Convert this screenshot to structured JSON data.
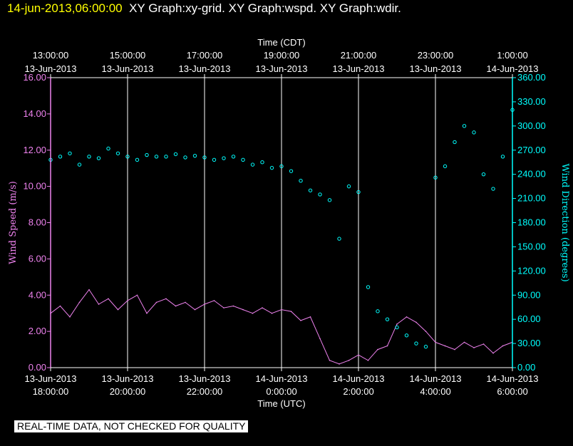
{
  "header": {
    "timestamp": "14-jun-2013,06:00:00",
    "graph_titles": "XY Graph:xy-grid.  XY Graph:wspd.  XY Graph:wdir."
  },
  "notice": "REAL-TIME DATA, NOT CHECKED FOR QUALITY",
  "colors": {
    "background": "#000000",
    "wspd": "#ee82ee",
    "wdir": "#00ffff",
    "grid": "#ffffff",
    "axis_wspd": "#ee82ee",
    "axis_wdir": "#00ffff"
  },
  "chart_data": {
    "type": "line",
    "title": "XY Graph:xy-grid.  XY Graph:wspd.  XY Graph:wdir.",
    "top_axis": {
      "label": "Time (CDT)",
      "ticks": [
        {
          "time": "13:00:00",
          "date": "13-Jun-2013"
        },
        {
          "time": "15:00:00",
          "date": "13-Jun-2013"
        },
        {
          "time": "17:00:00",
          "date": "13-Jun-2013"
        },
        {
          "time": "19:00:00",
          "date": "13-Jun-2013"
        },
        {
          "time": "21:00:00",
          "date": "13-Jun-2013"
        },
        {
          "time": "23:00:00",
          "date": "13-Jun-2013"
        },
        {
          "time": "1:00:00",
          "date": "14-Jun-2013"
        }
      ]
    },
    "bottom_axis": {
      "label": "Time (UTC)",
      "ticks": [
        {
          "date": "13-Jun-2013",
          "time": "18:00:00"
        },
        {
          "date": "13-Jun-2013",
          "time": "20:00:00"
        },
        {
          "date": "13-Jun-2013",
          "time": "22:00:00"
        },
        {
          "date": "14-Jun-2013",
          "time": "0:00:00"
        },
        {
          "date": "14-Jun-2013",
          "time": "2:00:00"
        },
        {
          "date": "14-Jun-2013",
          "time": "4:00:00"
        },
        {
          "date": "14-Jun-2013",
          "time": "6:00:00"
        }
      ]
    },
    "xlim_hours_utc_since_18": [
      0,
      12
    ],
    "left_axis": {
      "label": "Wind Speed (m/s)",
      "ylim": [
        0,
        16
      ],
      "tick_labels": [
        "0.00",
        "2.00",
        "4.00",
        "6.00",
        "8.00",
        "10.00",
        "12.00",
        "14.00",
        "16.00"
      ]
    },
    "right_axis": {
      "label": "Wind Direction (degrees)",
      "ylim": [
        0,
        360
      ],
      "tick_labels": [
        "0.00",
        "30.00",
        "60.00",
        "90.00",
        "120.00",
        "150.00",
        "180.00",
        "210.00",
        "240.00",
        "270.00",
        "300.00",
        "330.00",
        "360.00"
      ]
    },
    "series": [
      {
        "name": "wspd",
        "style": "line",
        "x": [
          0,
          0.25,
          0.5,
          0.75,
          1,
          1.25,
          1.5,
          1.75,
          2,
          2.25,
          2.5,
          2.75,
          3,
          3.25,
          3.5,
          3.75,
          4,
          4.25,
          4.5,
          4.75,
          5,
          5.25,
          5.5,
          5.75,
          6,
          6.25,
          6.5,
          6.75,
          7,
          7.25,
          7.5,
          7.75,
          8,
          8.25,
          8.5,
          8.75,
          9,
          9.25,
          9.5,
          9.75,
          10,
          10.25,
          10.5,
          10.75,
          11,
          11.25,
          11.5,
          11.75,
          12
        ],
        "values": [
          3.0,
          3.4,
          2.8,
          3.6,
          4.3,
          3.5,
          3.8,
          3.2,
          3.7,
          4.0,
          3.0,
          3.6,
          3.8,
          3.4,
          3.6,
          3.2,
          3.5,
          3.7,
          3.3,
          3.4,
          3.2,
          3.0,
          3.3,
          3.0,
          3.2,
          3.1,
          2.6,
          2.8,
          1.6,
          0.4,
          0.2,
          0.4,
          0.7,
          0.4,
          1.0,
          1.2,
          2.4,
          2.8,
          2.5,
          2.0,
          1.4,
          1.2,
          1.0,
          1.4,
          1.1,
          1.3,
          0.8,
          1.2,
          1.4
        ]
      },
      {
        "name": "wdir",
        "style": "scatter",
        "x": [
          0,
          0.25,
          0.5,
          0.75,
          1,
          1.25,
          1.5,
          1.75,
          2,
          2.25,
          2.5,
          2.75,
          3,
          3.25,
          3.5,
          3.75,
          4,
          4.25,
          4.5,
          4.75,
          5,
          5.25,
          5.5,
          5.75,
          6,
          6.25,
          6.5,
          6.75,
          7,
          7.25,
          7.5,
          7.75,
          8,
          8.25,
          8.5,
          8.75,
          9,
          9.25,
          9.5,
          9.75,
          10,
          10.25,
          10.5,
          10.75,
          11,
          11.25,
          11.5,
          11.75,
          12
        ],
        "values": [
          258,
          262,
          266,
          252,
          262,
          260,
          272,
          266,
          262,
          258,
          264,
          262,
          262,
          265,
          261,
          263,
          261,
          258,
          260,
          262,
          258,
          252,
          255,
          248,
          250,
          244,
          232,
          220,
          215,
          208,
          160,
          225,
          218,
          100,
          70,
          60,
          50,
          40,
          30,
          26,
          236,
          250,
          280,
          300,
          292,
          240,
          222,
          262,
          320
        ]
      }
    ]
  }
}
